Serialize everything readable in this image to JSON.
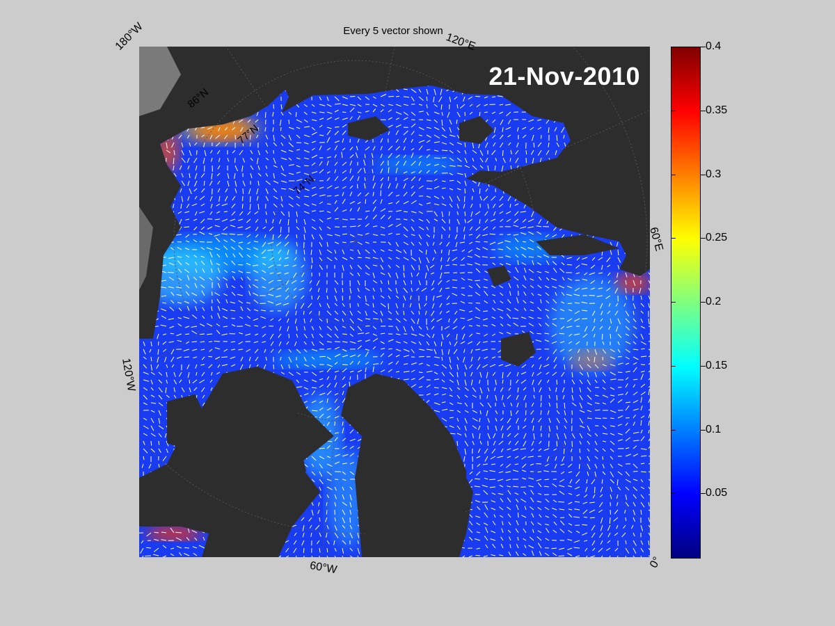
{
  "title": "Every 5 vector shown",
  "date": "21-Nov-2010",
  "longitude_labels": [
    "180°W",
    "120°E",
    "60°E",
    "0°",
    "60°W",
    "120°W"
  ],
  "latitude_labels": [
    "86°N",
    "77°N",
    "74°N"
  ],
  "colorbar": {
    "min": 0,
    "max": 0.4,
    "ticks": [
      "0.4",
      "0.35",
      "0.3",
      "0.25",
      "0.2",
      "0.15",
      "0.1",
      "0.05"
    ],
    "tick_values": [
      0.4,
      0.35,
      0.3,
      0.25,
      0.2,
      0.15,
      0.1,
      0.05
    ],
    "colormap": "jet"
  },
  "colors": {
    "background": "#cccccc",
    "land": "#2d2d2d",
    "ice_low": "#1436f0",
    "ice_mid": "#00d4ff",
    "ice_high": "#ff2000",
    "vectors": "#ffffff"
  }
}
